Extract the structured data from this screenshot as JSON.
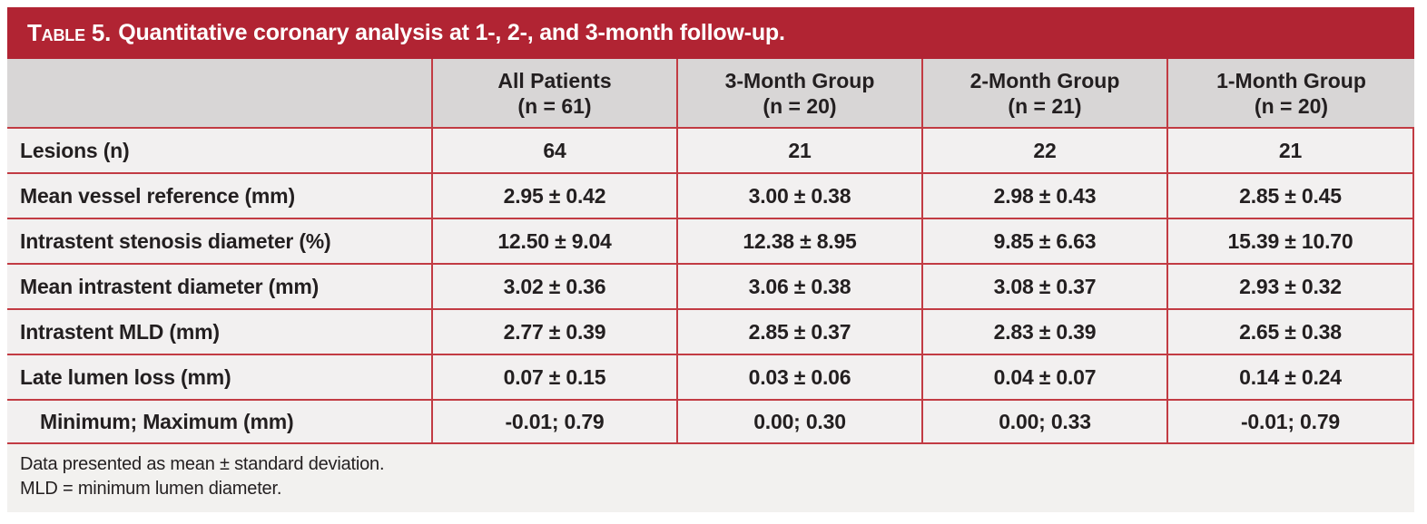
{
  "colors": {
    "band_red": "#b12433",
    "grid_red": "#c23b43",
    "header_bg": "#d8d6d6",
    "row_bg": "#f2f0f0",
    "footer_bg": "#f2f1ef",
    "text": "#231f20",
    "title_text": "#ffffff"
  },
  "table": {
    "title_prefix": "Table 5.",
    "title_text": "Quantitative coronary analysis at 1-, 2-, and 3-month follow-up.",
    "columns": [
      {
        "label": "All Patients",
        "sub": "(n = 61)"
      },
      {
        "label": "3-Month Group",
        "sub": "(n = 20)"
      },
      {
        "label": "2-Month Group",
        "sub": "(n = 21)"
      },
      {
        "label": "1-Month Group",
        "sub": "(n = 20)"
      }
    ],
    "rows": [
      {
        "label": "Lesions (n)",
        "values": [
          "64",
          "21",
          "22",
          "21"
        ]
      },
      {
        "label": "Mean vessel reference (mm)",
        "values": [
          "2.95 ± 0.42",
          "3.00 ± 0.38",
          "2.98 ± 0.43",
          "2.85 ± 0.45"
        ]
      },
      {
        "label": "Intrastent stenosis diameter (%)",
        "values": [
          "12.50 ± 9.04",
          "12.38 ± 8.95",
          "9.85 ± 6.63",
          "15.39 ± 10.70"
        ]
      },
      {
        "label": "Mean intrastent diameter (mm)",
        "values": [
          "3.02 ± 0.36",
          "3.06 ± 0.38",
          "3.08 ± 0.37",
          "2.93 ± 0.32"
        ]
      },
      {
        "label": "Intrastent MLD (mm)",
        "values": [
          "2.77 ± 0.39",
          "2.85 ± 0.37",
          "2.83 ± 0.39",
          "2.65 ± 0.38"
        ]
      },
      {
        "label": "Late lumen loss (mm)",
        "values": [
          "0.07 ± 0.15",
          "0.03 ± 0.06",
          "0.04 ± 0.07",
          "0.14 ± 0.24"
        ]
      },
      {
        "label": "Minimum; Maximum (mm)",
        "values": [
          "-0.01; 0.79",
          "0.00; 0.30",
          "0.00; 0.33",
          "-0.01; 0.79"
        ]
      }
    ],
    "footnotes": [
      "Data presented as mean ± standard deviation.",
      "MLD = minimum lumen diameter."
    ]
  }
}
